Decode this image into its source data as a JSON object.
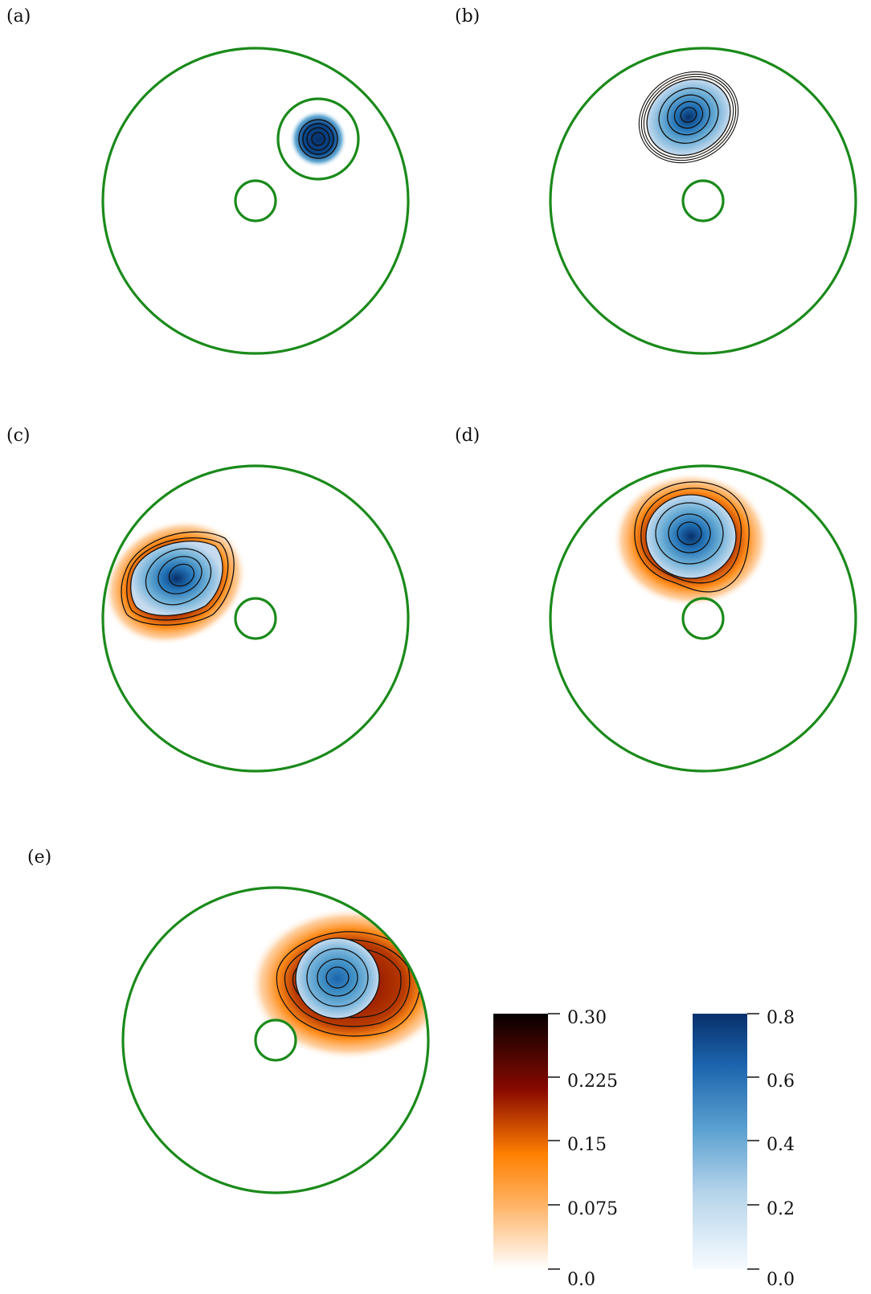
{
  "panels": [
    {
      "label": "(a)"
    },
    {
      "label": "(b)"
    },
    {
      "label": "(c)"
    },
    {
      "label": "(d)"
    },
    {
      "label": "(e)"
    }
  ],
  "colorbars": [
    {
      "name": "orange-colorbar",
      "ticks": [
        "0.30",
        "0.225",
        "0.15",
        "0.075",
        "0.0"
      ]
    },
    {
      "name": "blue-colorbar",
      "ticks": [
        "0.8",
        "0.6",
        "0.4",
        "0.2",
        "0.0"
      ]
    }
  ],
  "colors": {
    "boundary": "#1a8a1a",
    "blue_dark": "#08306b",
    "blue_mid": "#4292c6",
    "blue_light": "#c6dbef",
    "orange": "#ff8c1a",
    "dark_red": "#7a0000",
    "contour": "#111111"
  }
}
